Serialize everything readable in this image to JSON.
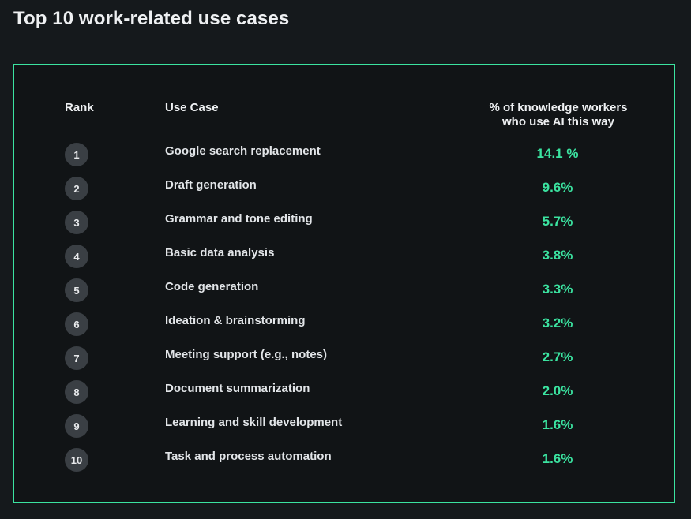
{
  "page": {
    "title": "Top 10 work-related use cases"
  },
  "colors": {
    "accent": "#3be3a0",
    "background": "#15191c",
    "badge": "#3a3f44"
  },
  "chart_data": {
    "type": "table",
    "title": "Top 10 work-related use cases",
    "columns": [
      "Rank",
      "Use Case",
      "% of knowledge workers who use AI this way"
    ],
    "header_pct_lines": [
      "% of knowledge workers",
      "who use AI this way"
    ],
    "rows": [
      {
        "rank": "1",
        "use_case": "Google search replacement",
        "pct": "14.1 %",
        "value": 14.1
      },
      {
        "rank": "2",
        "use_case": "Draft generation",
        "pct": "9.6%",
        "value": 9.6
      },
      {
        "rank": "3",
        "use_case": "Grammar and tone editing",
        "pct": "5.7%",
        "value": 5.7
      },
      {
        "rank": "4",
        "use_case": "Basic data analysis",
        "pct": "3.8%",
        "value": 3.8
      },
      {
        "rank": "5",
        "use_case": "Code generation",
        "pct": "3.3%",
        "value": 3.3
      },
      {
        "rank": "6",
        "use_case": "Ideation & brainstorming",
        "pct": "3.2%",
        "value": 3.2
      },
      {
        "rank": "7",
        "use_case": "Meeting support (e.g., notes)",
        "pct": "2.7%",
        "value": 2.7
      },
      {
        "rank": "8",
        "use_case": "Document summarization",
        "pct": "2.0%",
        "value": 2.0
      },
      {
        "rank": "9",
        "use_case": "Learning and skill development",
        "pct": "1.6%",
        "value": 1.6
      },
      {
        "rank": "10",
        "use_case": "Task and process automation",
        "pct": "1.6%",
        "value": 1.6
      }
    ]
  }
}
